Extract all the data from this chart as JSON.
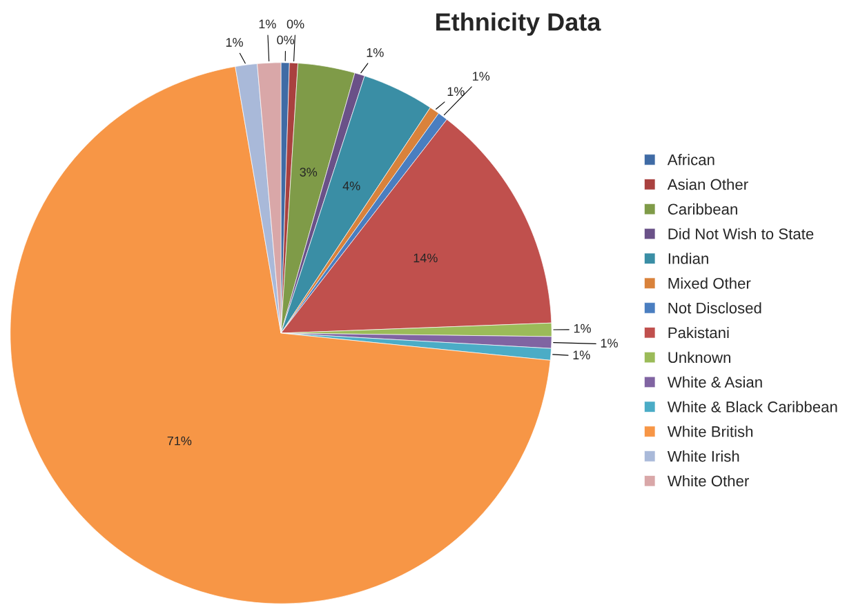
{
  "chart_data": {
    "type": "pie",
    "title": "Ethnicity Data",
    "categories": [
      "African",
      "Asian Other",
      "Caribbean",
      "Did Not Wish to State",
      "Indian",
      "Mixed Other",
      "Not Disclosed",
      "Pakistani",
      "Unknown",
      "White & Asian",
      "White & Black Caribbean",
      "White British",
      "White Irish",
      "White Other"
    ],
    "values": [
      0.5,
      0.5,
      3.4,
      0.6,
      4.3,
      0.6,
      0.6,
      13.9,
      0.8,
      0.7,
      0.7,
      70.7,
      1.3,
      1.4
    ],
    "value_labels": [
      "0%",
      "0%",
      "3%",
      "1%",
      "4%",
      "1%",
      "1%",
      "14%",
      "1%",
      "1%",
      "1%",
      "71%",
      "1%",
      "1%"
    ],
    "colors": [
      "#3f6ba5",
      "#a9413f",
      "#7f9b48",
      "#6a5188",
      "#3a8ea5",
      "#d9823b",
      "#4a7ec0",
      "#c0504d",
      "#9bbb59",
      "#8064a2",
      "#4bacc6",
      "#f79646",
      "#a9b9d9",
      "#d9a7a8"
    ],
    "legend": "right"
  }
}
